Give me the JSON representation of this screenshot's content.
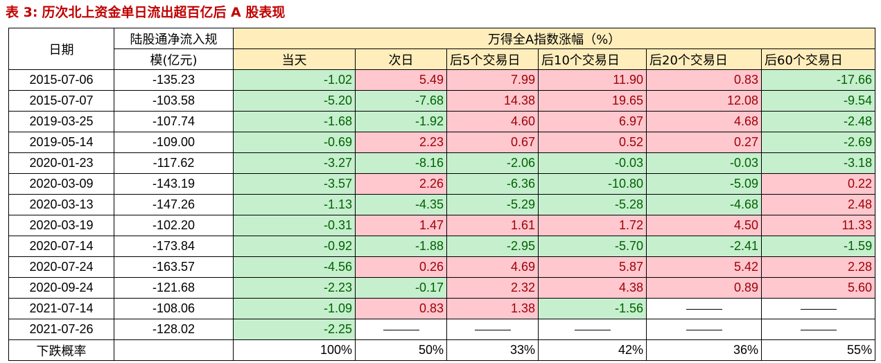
{
  "title": {
    "index": "表 3:",
    "text": "历次北上资金单日流出超百亿后 A 股表现"
  },
  "header": {
    "date_label": "日期",
    "flow_label_line1": "陆股通净流入规",
    "flow_label_line2": "模(亿元)",
    "group_label": "万得全A指数涨幅（%）",
    "columns": [
      "当天",
      "次日",
      "后5个交易日",
      "后10个交易日",
      "后20个交易日",
      "后60个交易日"
    ]
  },
  "rows": [
    {
      "date": "2015-07-06",
      "flow": "-135.23",
      "values": [
        "-1.02",
        "5.49",
        "7.99",
        "11.90",
        "0.83",
        "-17.66"
      ]
    },
    {
      "date": "2015-07-07",
      "flow": "-103.58",
      "values": [
        "-5.20",
        "-7.68",
        "14.38",
        "19.65",
        "12.08",
        "-9.54"
      ]
    },
    {
      "date": "2019-03-25",
      "flow": "-107.74",
      "values": [
        "-1.68",
        "-1.92",
        "4.60",
        "6.97",
        "4.68",
        "-2.48"
      ]
    },
    {
      "date": "2019-05-14",
      "flow": "-109.00",
      "values": [
        "-0.69",
        "2.23",
        "0.67",
        "0.52",
        "0.27",
        "-2.69"
      ]
    },
    {
      "date": "2020-01-23",
      "flow": "-117.62",
      "values": [
        "-3.27",
        "-8.16",
        "-2.06",
        "-0.03",
        "-0.03",
        "-3.18"
      ]
    },
    {
      "date": "2020-03-09",
      "flow": "-143.19",
      "values": [
        "-3.57",
        "2.26",
        "-6.36",
        "-10.80",
        "-5.09",
        "0.22"
      ]
    },
    {
      "date": "2020-03-13",
      "flow": "-147.26",
      "values": [
        "-1.13",
        "-4.35",
        "-5.29",
        "-5.28",
        "-4.68",
        "2.48"
      ]
    },
    {
      "date": "2020-03-19",
      "flow": "-102.20",
      "values": [
        "-0.31",
        "1.47",
        "1.61",
        "1.72",
        "4.50",
        "11.33"
      ]
    },
    {
      "date": "2020-07-14",
      "flow": "-173.84",
      "values": [
        "-0.92",
        "-1.88",
        "-2.95",
        "-5.70",
        "-2.41",
        "-1.59"
      ]
    },
    {
      "date": "2020-07-24",
      "flow": "-163.57",
      "values": [
        "-4.56",
        "0.26",
        "4.69",
        "5.87",
        "5.42",
        "2.28"
      ]
    },
    {
      "date": "2020-09-24",
      "flow": "-121.68",
      "values": [
        "-2.23",
        "-0.17",
        "2.32",
        "4.38",
        "0.89",
        "5.60"
      ]
    },
    {
      "date": "2021-07-14",
      "flow": "-108.06",
      "values": [
        "-1.09",
        "0.83",
        "1.38",
        "-1.56",
        "——",
        "——"
      ]
    },
    {
      "date": "2021-07-26",
      "flow": "-128.02",
      "values": [
        "-2.25",
        "——",
        "——",
        "——",
        "——",
        "——"
      ]
    }
  ],
  "footer": {
    "label": "下跌概率",
    "values": [
      "100%",
      "50%",
      "33%",
      "42%",
      "36%",
      "55%"
    ]
  },
  "colors": {
    "title": "#c00000",
    "header_yellow": "#ffeebb",
    "positive_fill": "#ffc7ce",
    "positive_text": "#9c0006",
    "negative_fill": "#c6efce",
    "negative_text": "#006100"
  }
}
